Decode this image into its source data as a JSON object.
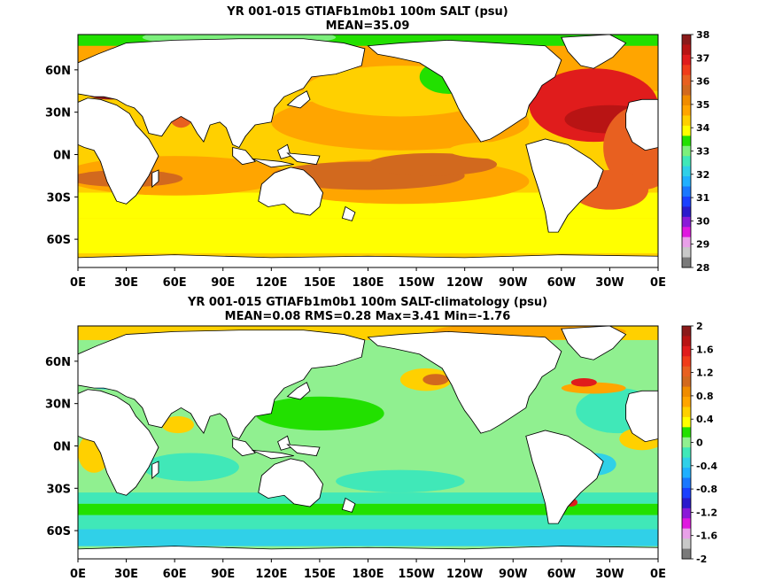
{
  "chart_data": [
    {
      "type": "heatmap",
      "title": "YR 001-015 GTIAFb1m0b1 100m SALT (psu)",
      "subtitle": "MEAN=35.09",
      "x_ticks": [
        "0E",
        "30E",
        "60E",
        "90E",
        "120E",
        "150E",
        "180E",
        "150W",
        "120W",
        "90W",
        "60W",
        "30W",
        "0E"
      ],
      "y_ticks": [
        "60N",
        "30N",
        "0N",
        "30S",
        "60S"
      ],
      "xlim": [
        0,
        360
      ],
      "ylim": [
        -80,
        85
      ],
      "colorbar": {
        "labels": [
          "38",
          "37",
          "36",
          "35",
          "34",
          "33",
          "32",
          "31",
          "30",
          "29",
          "28"
        ],
        "colors": [
          "#8b1a1a",
          "#b81414",
          "#e01c1c",
          "#f03c1a",
          "#e86020",
          "#d2691e",
          "#f08c00",
          "#ffa500",
          "#ffd000",
          "#ffff00",
          "#22e000",
          "#7cf07c",
          "#40e8b8",
          "#30d0e8",
          "#20b0ff",
          "#1a78ff",
          "#1a40ff",
          "#2a1acc",
          "#8a1ad8",
          "#e018e0",
          "#e8a0e8",
          "#c8c8c8",
          "#7a7a7a"
        ]
      },
      "map_colors": {
        "ocean_base": "#ffd000",
        "land": "#ffffff"
      }
    },
    {
      "type": "heatmap",
      "title": "YR 001-015 GTIAFb1m0b1 100m SALT-climatology (psu)",
      "subtitle": "MEAN=0.08   RMS=0.28   Max=3.41   Min=-1.76",
      "x_ticks": [
        "0E",
        "30E",
        "60E",
        "90E",
        "120E",
        "150E",
        "180E",
        "150W",
        "120W",
        "90W",
        "60W",
        "30W",
        "0E"
      ],
      "y_ticks": [
        "60N",
        "30N",
        "0N",
        "30S",
        "60S"
      ],
      "xlim": [
        0,
        360
      ],
      "ylim": [
        -80,
        85
      ],
      "colorbar": {
        "labels": [
          "2",
          "1.6",
          "1.2",
          "0.8",
          "0.4",
          "0",
          "-0.4",
          "-0.8",
          "-1.2",
          "-1.6",
          "-2"
        ],
        "colors": [
          "#8b1a1a",
          "#b81414",
          "#e01c1c",
          "#f03c1a",
          "#e86020",
          "#d2691e",
          "#f08c00",
          "#ffa500",
          "#ffd000",
          "#ffff00",
          "#22e000",
          "#90f090",
          "#40e8b8",
          "#30d0e8",
          "#20b0ff",
          "#1a78ff",
          "#1a40ff",
          "#2a1acc",
          "#8a1ad8",
          "#e018e0",
          "#e8a0e8",
          "#c8c8c8",
          "#7a7a7a"
        ]
      },
      "map_colors": {
        "ocean_base": "#90f090",
        "land": "#ffffff"
      }
    }
  ]
}
